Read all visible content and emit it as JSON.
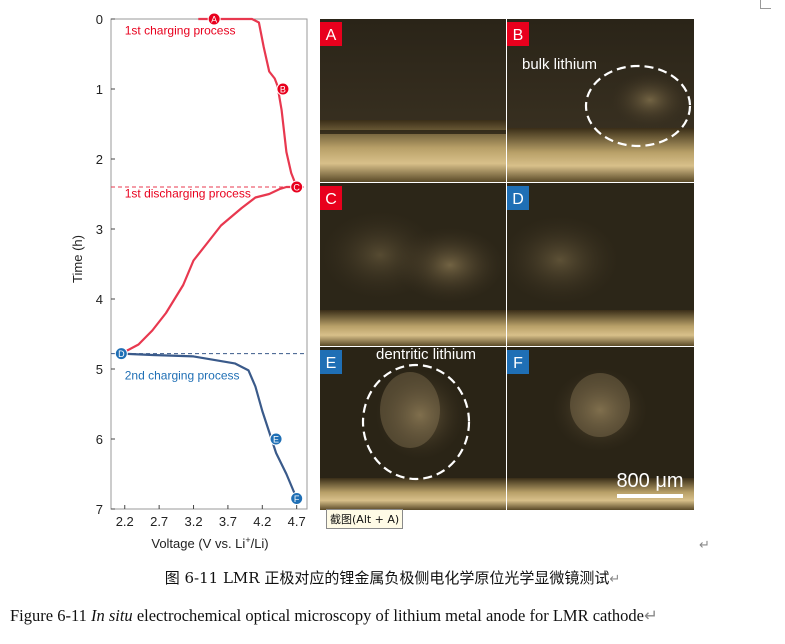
{
  "chart_data": {
    "type": "line",
    "xlabel": "Voltage (V vs. Li+/Li)",
    "ylabel": "Time (h)",
    "xticks": [
      2.2,
      2.7,
      3.2,
      3.7,
      4.2,
      4.7
    ],
    "yticks": [
      0,
      1,
      2,
      3,
      4,
      5,
      6,
      7
    ],
    "xlim": [
      2.0,
      4.85
    ],
    "ylim": [
      0,
      7
    ],
    "y_inverted": true,
    "grid": false,
    "series": [
      {
        "name": "1st charging process",
        "color": "#e8384f",
        "points": [
          [
            3.27,
            0.0
          ],
          [
            3.6,
            0.0
          ],
          [
            4.05,
            0.0
          ],
          [
            4.15,
            0.05
          ],
          [
            4.22,
            0.4
          ],
          [
            4.3,
            0.75
          ],
          [
            4.38,
            0.85
          ],
          [
            4.42,
            0.95
          ],
          [
            4.48,
            1.3
          ],
          [
            4.55,
            1.9
          ],
          [
            4.62,
            2.2
          ],
          [
            4.7,
            2.4
          ]
        ]
      },
      {
        "name": "1st discharging process",
        "color": "#e8384f",
        "points": [
          [
            4.7,
            2.4
          ],
          [
            4.55,
            2.4
          ],
          [
            4.45,
            2.43
          ],
          [
            4.3,
            2.5
          ],
          [
            4.1,
            2.55
          ],
          [
            3.9,
            2.7
          ],
          [
            3.6,
            2.95
          ],
          [
            3.4,
            3.2
          ],
          [
            3.2,
            3.45
          ],
          [
            3.05,
            3.8
          ],
          [
            2.8,
            4.2
          ],
          [
            2.6,
            4.45
          ],
          [
            2.4,
            4.65
          ],
          [
            2.15,
            4.78
          ]
        ]
      },
      {
        "name": "2nd charging process",
        "color": "#3a5a8a",
        "points": [
          [
            2.15,
            4.78
          ],
          [
            2.6,
            4.8
          ],
          [
            3.2,
            4.82
          ],
          [
            3.5,
            4.87
          ],
          [
            3.8,
            4.92
          ],
          [
            4.0,
            5.02
          ],
          [
            4.1,
            5.25
          ],
          [
            4.2,
            5.6
          ],
          [
            4.3,
            5.9
          ],
          [
            4.4,
            6.2
          ],
          [
            4.55,
            6.5
          ],
          [
            4.7,
            6.85
          ]
        ]
      }
    ],
    "markers": [
      {
        "label": "A",
        "x": 3.5,
        "y": 0.0,
        "color": "#e8001d"
      },
      {
        "label": "B",
        "x": 4.5,
        "y": 1.0,
        "color": "#e8001d"
      },
      {
        "label": "C",
        "x": 4.7,
        "y": 2.4,
        "color": "#e8001d"
      },
      {
        "label": "D",
        "x": 2.15,
        "y": 4.78,
        "color": "#1f6fb5"
      },
      {
        "label": "E",
        "x": 4.4,
        "y": 6.0,
        "color": "#1f6fb5"
      },
      {
        "label": "F",
        "x": 4.7,
        "y": 6.85,
        "color": "#1f6fb5"
      }
    ],
    "hlines": [
      {
        "y": 2.4,
        "color": "#e8384f",
        "style": "dashed"
      },
      {
        "y": 4.78,
        "color": "#3a5a8a",
        "style": "dashed"
      }
    ],
    "annotations": [
      {
        "text": "1st charging process",
        "color": "#e8001d",
        "x": 2.2,
        "y": 0.22
      },
      {
        "text": "1st discharging process",
        "color": "#e8001d",
        "x": 2.2,
        "y": 2.55
      },
      {
        "text": "2nd charging process",
        "color": "#1f6fb5",
        "x": 2.2,
        "y": 5.15
      }
    ]
  },
  "plot_labels": {
    "xlabel_main": "Voltage (V vs. Li",
    "xlabel_sup": "+",
    "xlabel_end": "/Li)",
    "ylabel": "Time (h)"
  },
  "panels": [
    {
      "label": "A",
      "color": "#e8001d"
    },
    {
      "label": "B",
      "color": "#e8001d"
    },
    {
      "label": "C",
      "color": "#e8001d"
    },
    {
      "label": "D",
      "color": "#1f6fb5"
    },
    {
      "label": "E",
      "color": "#1f6fb5"
    },
    {
      "label": "F",
      "color": "#1f6fb5"
    }
  ],
  "image_annotations": {
    "bulk": "bulk lithium",
    "dendritic": "dentritic lithium",
    "scale": "800 μm"
  },
  "tooltip": "截图(Alt + A)",
  "caption_cn": "图 6-11 LMR 正极对应的锂金属负极侧电化学原位光学显微镜测试",
  "caption_en": {
    "prefix": "Figure 6-11 ",
    "italic": "In situ",
    "rest": " electrochemical optical microscopy of lithium metal anode for LMR cathode"
  },
  "para_mark": "↵"
}
